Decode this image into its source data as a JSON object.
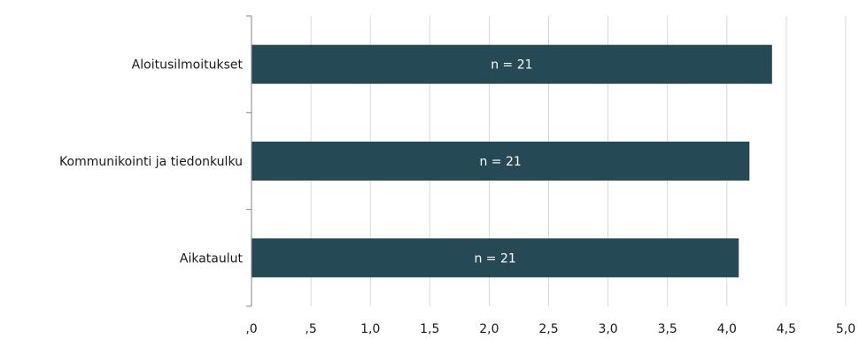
{
  "chart_data": {
    "type": "bar",
    "orientation": "horizontal",
    "title": "",
    "xlabel": "",
    "ylabel": "",
    "categories": [
      "Aloitusilmoitukset",
      "Kommunikointi ja tiedonkulku",
      "Aikataulut"
    ],
    "values": [
      4.38,
      4.19,
      4.1
    ],
    "data_labels": [
      "n = 21",
      "n = 21",
      "n = 21"
    ],
    "xlim": [
      0,
      5
    ],
    "x_ticks": [
      0,
      0.5,
      1.0,
      1.5,
      2.0,
      2.5,
      3.0,
      3.5,
      4.0,
      4.5,
      5.0
    ],
    "x_tick_labels": [
      ",0",
      ",5",
      "1,0",
      "1,5",
      "2,0",
      "2,5",
      "3,0",
      "3,5",
      "4,0",
      "4,5",
      "5,0"
    ],
    "grid": "vertical",
    "legend": "none",
    "colors": {
      "bar": "#264a55",
      "bar_label": "#ffffff",
      "grid": "#d9d9d9",
      "axis": "#868686",
      "text": "#1a1a1a"
    }
  }
}
